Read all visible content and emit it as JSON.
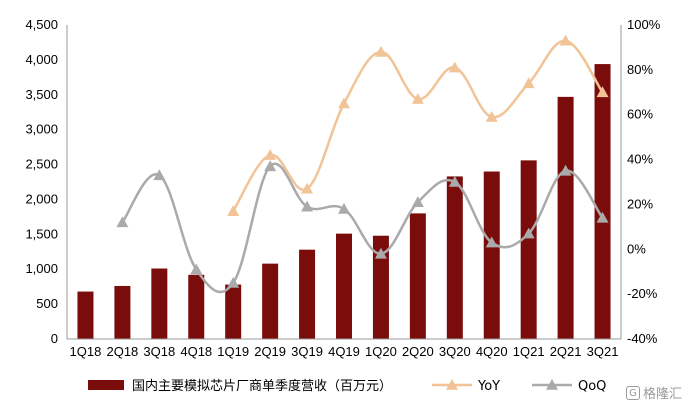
{
  "chart_data": {
    "type": "bar+line",
    "categories": [
      "1Q18",
      "2Q18",
      "3Q18",
      "4Q18",
      "1Q19",
      "2Q19",
      "3Q19",
      "4Q19",
      "1Q20",
      "2Q20",
      "3Q20",
      "4Q20",
      "1Q21",
      "2Q21",
      "3Q21"
    ],
    "left_axis": {
      "ticks": [
        "0",
        "500",
        "1,000",
        "1,500",
        "2,000",
        "2,500",
        "3,000",
        "3,500",
        "4,000",
        "4,500"
      ],
      "ylim": [
        0,
        4500
      ]
    },
    "right_axis": {
      "ticks": [
        "-40%",
        "-20%",
        "0%",
        "20%",
        "40%",
        "60%",
        "80%",
        "100%"
      ],
      "ylim": [
        -40,
        100
      ]
    },
    "series": [
      {
        "name": "国内主要模拟芯片厂商单季度营收（百万元）",
        "kind": "bar",
        "axis": "left",
        "color": "#7b0c0c",
        "values": [
          680,
          760,
          1010,
          920,
          780,
          1080,
          1280,
          1510,
          1480,
          1800,
          2330,
          2400,
          2560,
          3470,
          3940
        ]
      },
      {
        "name": "YoY",
        "kind": "line",
        "axis": "right",
        "color": "#f2c397",
        "values": [
          null,
          null,
          null,
          null,
          17,
          42,
          27,
          65,
          88,
          67,
          81,
          59,
          74,
          93,
          70
        ]
      },
      {
        "name": "QoQ",
        "kind": "line",
        "axis": "right",
        "color": "#aaaaaa",
        "values": [
          null,
          12,
          33,
          -9,
          -15,
          37,
          19,
          18,
          -2,
          21,
          30,
          3,
          7,
          35,
          14
        ]
      }
    ],
    "grid": false,
    "legend": "bottom"
  },
  "watermark": {
    "text": "格隆汇",
    "icon_glyph": "G"
  }
}
